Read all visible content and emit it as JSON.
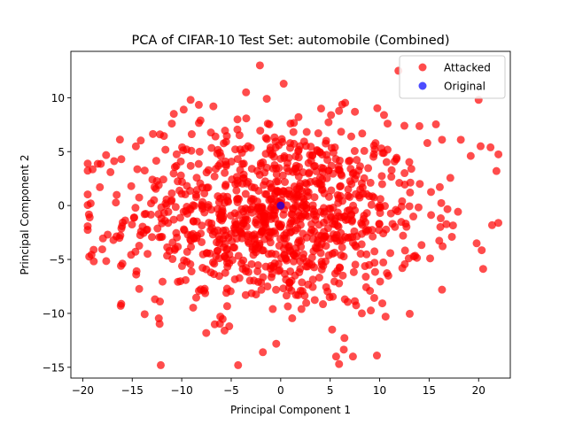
{
  "chart_data": {
    "type": "scatter",
    "title": "PCA of CIFAR-10 Test Set: automobile (Combined)",
    "xlabel": "Principal Component 1",
    "ylabel": "Principal Component 2",
    "xlim": [
      -21.2,
      23.2
    ],
    "ylim": [
      -16.0,
      14.3
    ],
    "xticks": [
      -20,
      -15,
      -10,
      -5,
      0,
      5,
      10,
      15,
      20
    ],
    "yticks": [
      -15,
      -10,
      -5,
      0,
      5,
      10
    ],
    "grid": false,
    "legend_position": "top-right",
    "series": [
      {
        "name": "Attacked",
        "color": "#ff0000",
        "alpha": 0.7,
        "cloud": {
          "count": 1000,
          "x_center": -0.5,
          "x_spread": 7.5,
          "y_center": -1.0,
          "y_spread": 4.3
        },
        "points": [
          [
            -2.1,
            13.0
          ],
          [
            0.3,
            11.3
          ],
          [
            -3.5,
            10.5
          ],
          [
            -9.1,
            9.8
          ],
          [
            -9.8,
            8.9
          ],
          [
            -10.8,
            8.5
          ],
          [
            20.0,
            9.8
          ],
          [
            7.5,
            8.7
          ],
          [
            1.8,
            8.2
          ],
          [
            -1.3,
            7.6
          ],
          [
            -8.1,
            7.9
          ],
          [
            10.8,
            7.6
          ],
          [
            12.5,
            7.4
          ],
          [
            -11.0,
            7.6
          ],
          [
            -12.2,
            6.6
          ],
          [
            16.3,
            6.1
          ],
          [
            18.2,
            6.1
          ],
          [
            20.2,
            5.5
          ],
          [
            21.2,
            5.4
          ],
          [
            19.2,
            4.6
          ],
          [
            21.8,
            3.2
          ],
          [
            -17.2,
            3.1
          ],
          [
            -16.1,
            4.3
          ],
          [
            -19.2,
            0.2
          ],
          [
            -19.3,
            -1.1
          ],
          [
            -18.9,
            -4.1
          ],
          [
            -16.9,
            -3.2
          ],
          [
            -14.6,
            -6.4
          ],
          [
            -12.2,
            -8.9
          ],
          [
            -6.1,
            -10.3
          ],
          [
            -5.2,
            -11.2
          ],
          [
            -1.8,
            -13.6
          ],
          [
            5.6,
            -14.0
          ],
          [
            5.9,
            -14.7
          ],
          [
            7.3,
            -14.0
          ],
          [
            -0.8,
            -9.6
          ],
          [
            2.1,
            -9.6
          ],
          [
            5.2,
            -11.5
          ],
          [
            8.2,
            -10.0
          ],
          [
            10.6,
            -10.3
          ],
          [
            16.3,
            -7.8
          ],
          [
            19.8,
            -3.5
          ],
          [
            15.1,
            -4.9
          ],
          [
            17.3,
            -2.9
          ],
          [
            13.2,
            3.4
          ],
          [
            3.8,
            6.7
          ],
          [
            -13.1,
            0.2
          ],
          [
            -15.1,
            1.8
          ],
          [
            9.5,
            5.2
          ],
          [
            -6.8,
            9.2
          ],
          [
            2.5,
            2.1
          ],
          [
            -1.9,
            -2.4
          ],
          [
            4.3,
            -5.6
          ],
          [
            -6.2,
            -3.5
          ],
          [
            6.8,
            0.9
          ],
          [
            -9.5,
            -5.2
          ],
          [
            11.3,
            -1.7
          ],
          [
            -4.1,
            3.3
          ],
          [
            0.9,
            -7.2
          ],
          [
            8.6,
            -6.6
          ]
        ]
      },
      {
        "name": "Original",
        "color": "#0000ff",
        "alpha": 0.7,
        "points": [
          [
            0.0,
            0.0
          ]
        ]
      }
    ]
  }
}
